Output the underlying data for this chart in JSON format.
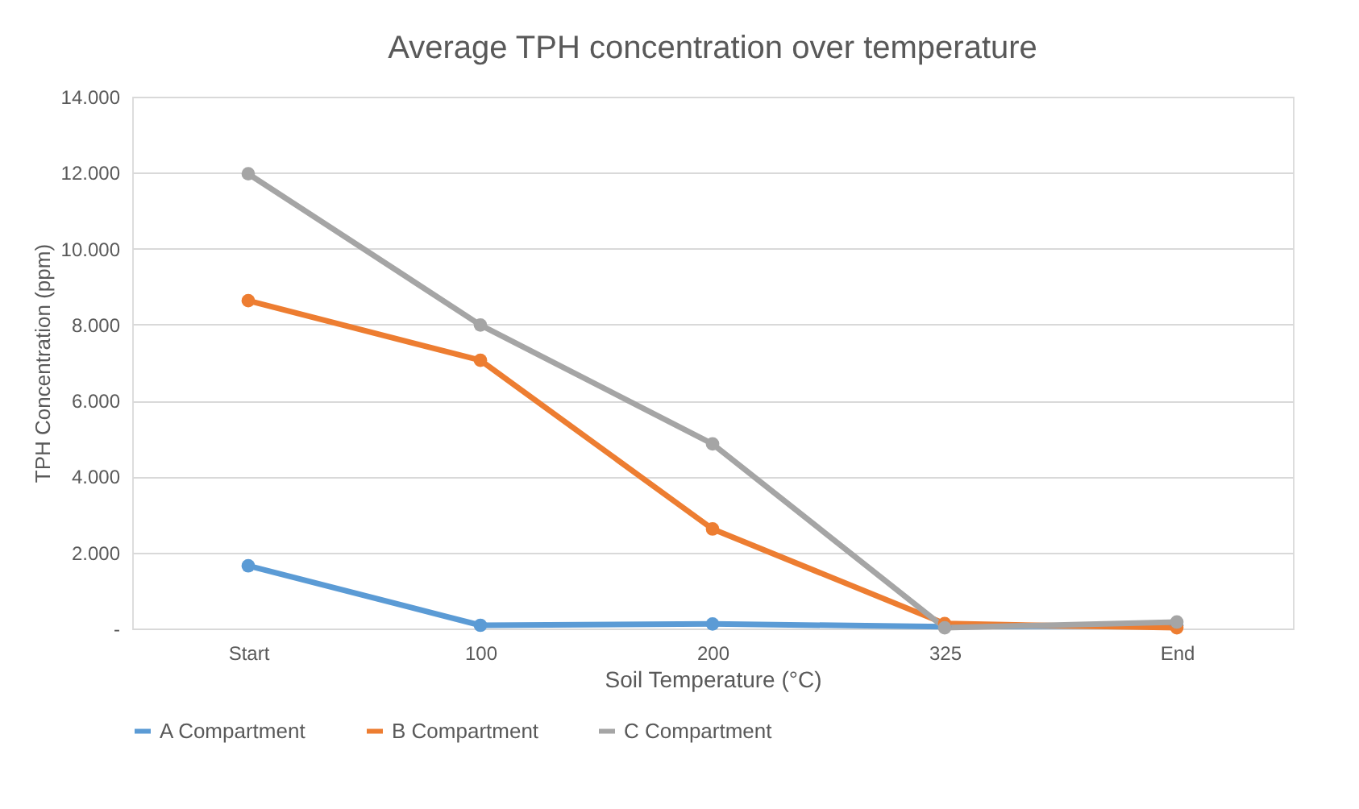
{
  "chart_data": {
    "type": "line",
    "title": "Average TPH concentration over temperature",
    "xlabel": "Soil Temperature (°C)",
    "ylabel": "TPH Concentration (ppm)",
    "categories": [
      "Start",
      "100",
      "200",
      "325",
      "End"
    ],
    "series": [
      {
        "name": "A Compartment",
        "color": "#5b9bd5",
        "values": [
          1650,
          85,
          120,
          50,
          80
        ]
      },
      {
        "name": "B Compartment",
        "color": "#ed7d31",
        "values": [
          8630,
          7060,
          2620,
          130,
          20
        ]
      },
      {
        "name": "C Compartment",
        "color": "#a5a5a5",
        "values": [
          11970,
          7990,
          4860,
          20,
          170
        ]
      }
    ],
    "ylim": [
      0,
      14000
    ],
    "yticks": [
      {
        "value": 0,
        "label": "-"
      },
      {
        "value": 2000,
        "label": "2.000"
      },
      {
        "value": 4000,
        "label": "4.000"
      },
      {
        "value": 6000,
        "label": "6.000"
      },
      {
        "value": 8000,
        "label": "8.000"
      },
      {
        "value": 10000,
        "label": "10.000"
      },
      {
        "value": 12000,
        "label": "12.000"
      },
      {
        "value": 14000,
        "label": "14.000"
      }
    ],
    "grid": "y",
    "legend": "bottom",
    "marker": "circle",
    "line_style": "solid"
  }
}
